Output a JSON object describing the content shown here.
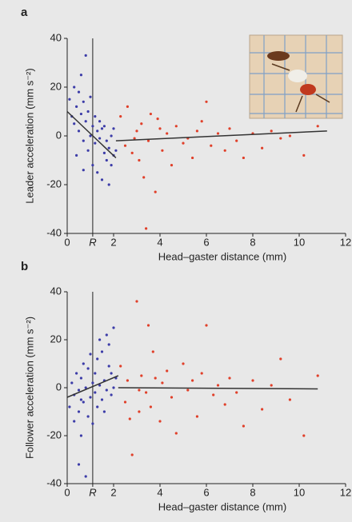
{
  "chart_data": [
    {
      "type": "scatter",
      "panel_label": "a",
      "xlabel": "Head–gaster distance (mm)",
      "ylabel": "Leader acceleration (mm s⁻²)",
      "xlim": [
        0,
        12
      ],
      "ylim": [
        -40,
        40
      ],
      "xticks": [
        0,
        {
          "value": 1.1,
          "label": "R"
        },
        2,
        4,
        6,
        8,
        10,
        12
      ],
      "yticks": [
        -40,
        -20,
        0,
        20,
        40
      ],
      "reference_line_x": 1.1,
      "series": [
        {
          "color": "#3c3ca8",
          "x": [
            0.1,
            0.2,
            0.3,
            0.3,
            0.4,
            0.5,
            0.5,
            0.6,
            0.6,
            0.7,
            0.7,
            0.8,
            0.8,
            0.9,
            0.9,
            1.0,
            1.0,
            1.1,
            1.1,
            1.2,
            1.2,
            1.3,
            1.3,
            1.4,
            1.4,
            1.5,
            1.5,
            1.6,
            1.6,
            1.7,
            1.7,
            1.8,
            1.8,
            1.9,
            1.9,
            2.0,
            2.0,
            2.1,
            0.7,
            0.4
          ],
          "values": [
            15,
            8,
            20,
            5,
            12,
            18,
            2,
            25,
            9,
            14,
            -2,
            33,
            6,
            10,
            -6,
            16,
            0,
            4,
            -12,
            8,
            -3,
            2,
            -15,
            -1,
            6,
            -18,
            3,
            -7,
            4,
            -10,
            -2,
            -5,
            -20,
            0,
            -12,
            -8,
            3,
            -6,
            -14,
            -8
          ]
        },
        {
          "color": "#e0402a",
          "x": [
            2.3,
            2.5,
            2.6,
            2.8,
            3.0,
            3.1,
            3.2,
            3.4,
            3.5,
            3.6,
            3.8,
            4.0,
            4.1,
            4.3,
            4.5,
            4.7,
            5.0,
            5.2,
            5.4,
            5.6,
            5.8,
            6.0,
            6.2,
            6.5,
            6.8,
            7.0,
            7.3,
            7.6,
            8.0,
            8.4,
            8.8,
            9.2,
            9.6,
            10.2,
            10.8,
            3.3,
            3.9,
            2.9
          ],
          "values": [
            8,
            -4,
            12,
            -7,
            2,
            -10,
            5,
            -38,
            -2,
            9,
            -23,
            3,
            -6,
            1,
            -12,
            4,
            -3,
            -1,
            -9,
            2,
            6,
            14,
            -4,
            1,
            -6,
            3,
            -2,
            -9,
            1,
            -5,
            2,
            -1,
            0,
            -8,
            4,
            -17,
            7,
            -1
          ]
        }
      ],
      "fit_lines": [
        {
          "color": "#333333",
          "x": [
            0,
            2.1
          ],
          "values": [
            10,
            -9
          ]
        },
        {
          "color": "#333333",
          "x": [
            2.1,
            11.2
          ],
          "values": [
            -2,
            2
          ]
        }
      ]
    },
    {
      "type": "scatter",
      "panel_label": "b",
      "xlabel": "Head–gaster distance (mm)",
      "ylabel": "Follower acceleration (mm s⁻²)",
      "xlim": [
        0,
        12
      ],
      "ylim": [
        -40,
        40
      ],
      "xticks": [
        0,
        {
          "value": 1.1,
          "label": "R"
        },
        2,
        4,
        6,
        8,
        10,
        12
      ],
      "yticks": [
        -40,
        -20,
        0,
        20,
        40
      ],
      "reference_line_x": 1.1,
      "series": [
        {
          "color": "#3c3ca8",
          "x": [
            0.1,
            0.2,
            0.3,
            0.3,
            0.4,
            0.5,
            0.5,
            0.6,
            0.6,
            0.7,
            0.7,
            0.8,
            0.8,
            0.9,
            0.9,
            1.0,
            1.0,
            1.1,
            1.1,
            1.2,
            1.2,
            1.3,
            1.3,
            1.4,
            1.4,
            1.5,
            1.5,
            1.6,
            1.6,
            1.7,
            1.7,
            1.8,
            1.8,
            1.9,
            1.9,
            2.0,
            2.0,
            2.1,
            0.5,
            0.6
          ],
          "values": [
            -8,
            2,
            -14,
            -3,
            6,
            -10,
            -1,
            -20,
            4,
            -6,
            10,
            -37,
            0,
            -12,
            8,
            -4,
            14,
            2,
            -15,
            6,
            -2,
            12,
            -8,
            20,
            1,
            -5,
            15,
            3,
            -10,
            22,
            -1,
            9,
            18,
            -3,
            6,
            25,
            0,
            4,
            -32,
            -5
          ]
        },
        {
          "color": "#e0402a",
          "x": [
            2.3,
            2.5,
            2.6,
            2.8,
            3.0,
            3.1,
            3.2,
            3.4,
            3.5,
            3.6,
            3.8,
            4.0,
            4.1,
            4.3,
            4.5,
            4.7,
            5.0,
            5.2,
            5.4,
            5.6,
            5.8,
            6.0,
            6.3,
            6.5,
            6.8,
            7.0,
            7.3,
            7.6,
            8.0,
            8.4,
            8.8,
            9.2,
            9.6,
            10.2,
            10.8,
            3.1,
            2.7,
            3.7
          ],
          "values": [
            9,
            -6,
            3,
            -28,
            36,
            -10,
            5,
            -2,
            26,
            -8,
            4,
            -14,
            2,
            7,
            -4,
            -19,
            10,
            -1,
            3,
            -12,
            6,
            26,
            -3,
            1,
            -7,
            4,
            -2,
            -16,
            3,
            -9,
            1,
            12,
            -5,
            -20,
            5,
            -1,
            -13,
            15
          ]
        }
      ],
      "fit_lines": [
        {
          "color": "#333333",
          "x": [
            0,
            2.2
          ],
          "values": [
            -4,
            5
          ]
        },
        {
          "color": "#333333",
          "x": [
            2.2,
            10.8
          ],
          "values": [
            0,
            -0.5
          ]
        }
      ]
    }
  ]
}
